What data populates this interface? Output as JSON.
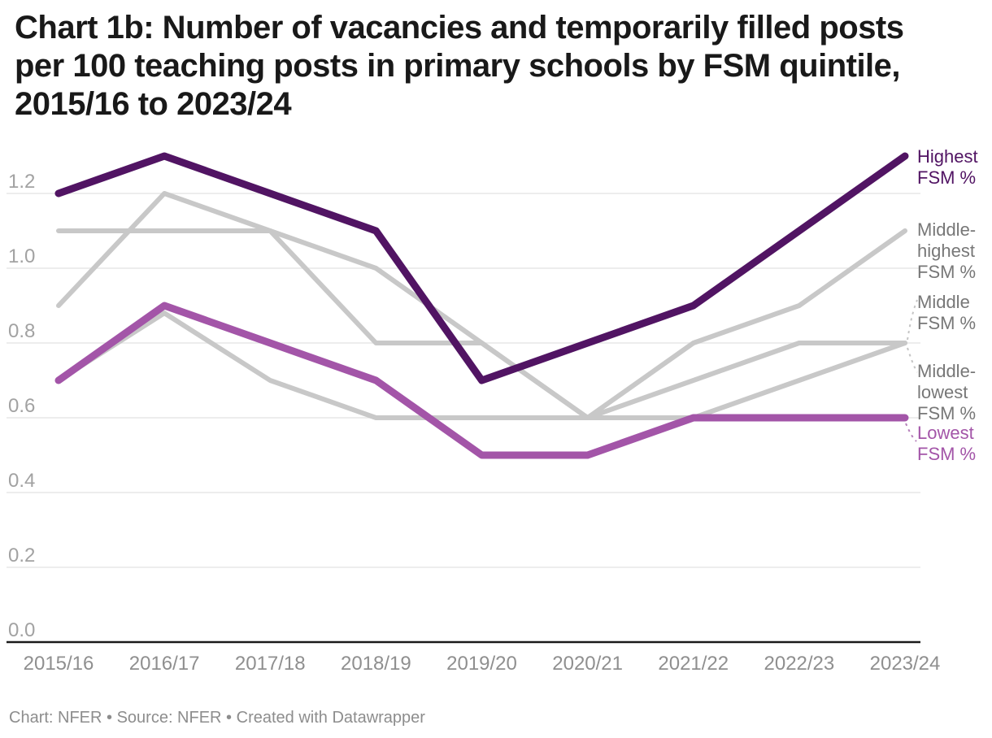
{
  "title": "Chart 1b: Number of vacancies and temporarily filled posts\nper 100 teaching posts in primary schools by FSM quintile,\n2015/16 to 2023/24",
  "footer": "Chart: NFER • Source: NFER • Created with Datawrapper",
  "colors": {
    "highest_line": "#511463",
    "lowest_line": "#a355a8",
    "gray_line": "#c8c8c8",
    "gridline": "#e7e7e7",
    "axis_line": "#1a1a1a",
    "gray_label_text": "#777777",
    "lowest_label_text": "#a355a8"
  },
  "chart_data": {
    "type": "line",
    "title": "Chart 1b: Number of vacancies and temporarily filled posts per 100 teaching posts in primary schools by FSM quintile, 2015/16 to 2023/24",
    "xlabel": "",
    "ylabel": "",
    "categories": [
      "2015/16",
      "2016/17",
      "2017/18",
      "2018/19",
      "2019/20",
      "2020/21",
      "2021/22",
      "2022/23",
      "2023/24"
    ],
    "y_ticks": [
      "0.0",
      "0.2",
      "0.4",
      "0.6",
      "0.8",
      "1.0",
      "1.2"
    ],
    "ylim": [
      0,
      1.3
    ],
    "grid": true,
    "legend_position": "right-edge-direct-labels",
    "series": [
      {
        "name": "Highest FSM %",
        "label": "Highest\nFSM %",
        "color": "#511463",
        "label_color": "#511463",
        "stroke_width": 9,
        "z": 5,
        "values": [
          1.2,
          1.3,
          1.2,
          1.1,
          0.7,
          0.8,
          0.9,
          1.1,
          1.3
        ]
      },
      {
        "name": "Middle-highest FSM %",
        "label": "Middle-\nhighest\nFSM %",
        "color": "#c8c8c8",
        "label_color": "#777777",
        "stroke_width": 6,
        "z": 2,
        "values": [
          0.9,
          1.2,
          1.1,
          1.0,
          0.8,
          0.6,
          0.8,
          0.9,
          1.1
        ]
      },
      {
        "name": "Middle FSM %",
        "label": "Middle\nFSM %",
        "color": "#c8c8c8",
        "label_color": "#777777",
        "stroke_width": 6,
        "z": 1,
        "values": [
          1.1,
          1.1,
          1.1,
          0.8,
          0.8,
          0.6,
          0.7,
          0.8,
          0.8
        ]
      },
      {
        "name": "Middle-lowest FSM %",
        "label": "Middle-\nlowest\nFSM %",
        "color": "#c8c8c8",
        "label_color": "#777777",
        "stroke_width": 6,
        "z": 3,
        "values": [
          0.7,
          0.88,
          0.7,
          0.6,
          0.6,
          0.6,
          0.6,
          0.7,
          0.8
        ]
      },
      {
        "name": "Lowest FSM %",
        "label": "Lowest\nFSM %",
        "color": "#a355a8",
        "label_color": "#a355a8",
        "stroke_width": 9,
        "z": 4,
        "values": [
          0.7,
          0.9,
          0.8,
          0.7,
          0.5,
          0.5,
          0.6,
          0.6,
          0.6
        ]
      }
    ]
  }
}
